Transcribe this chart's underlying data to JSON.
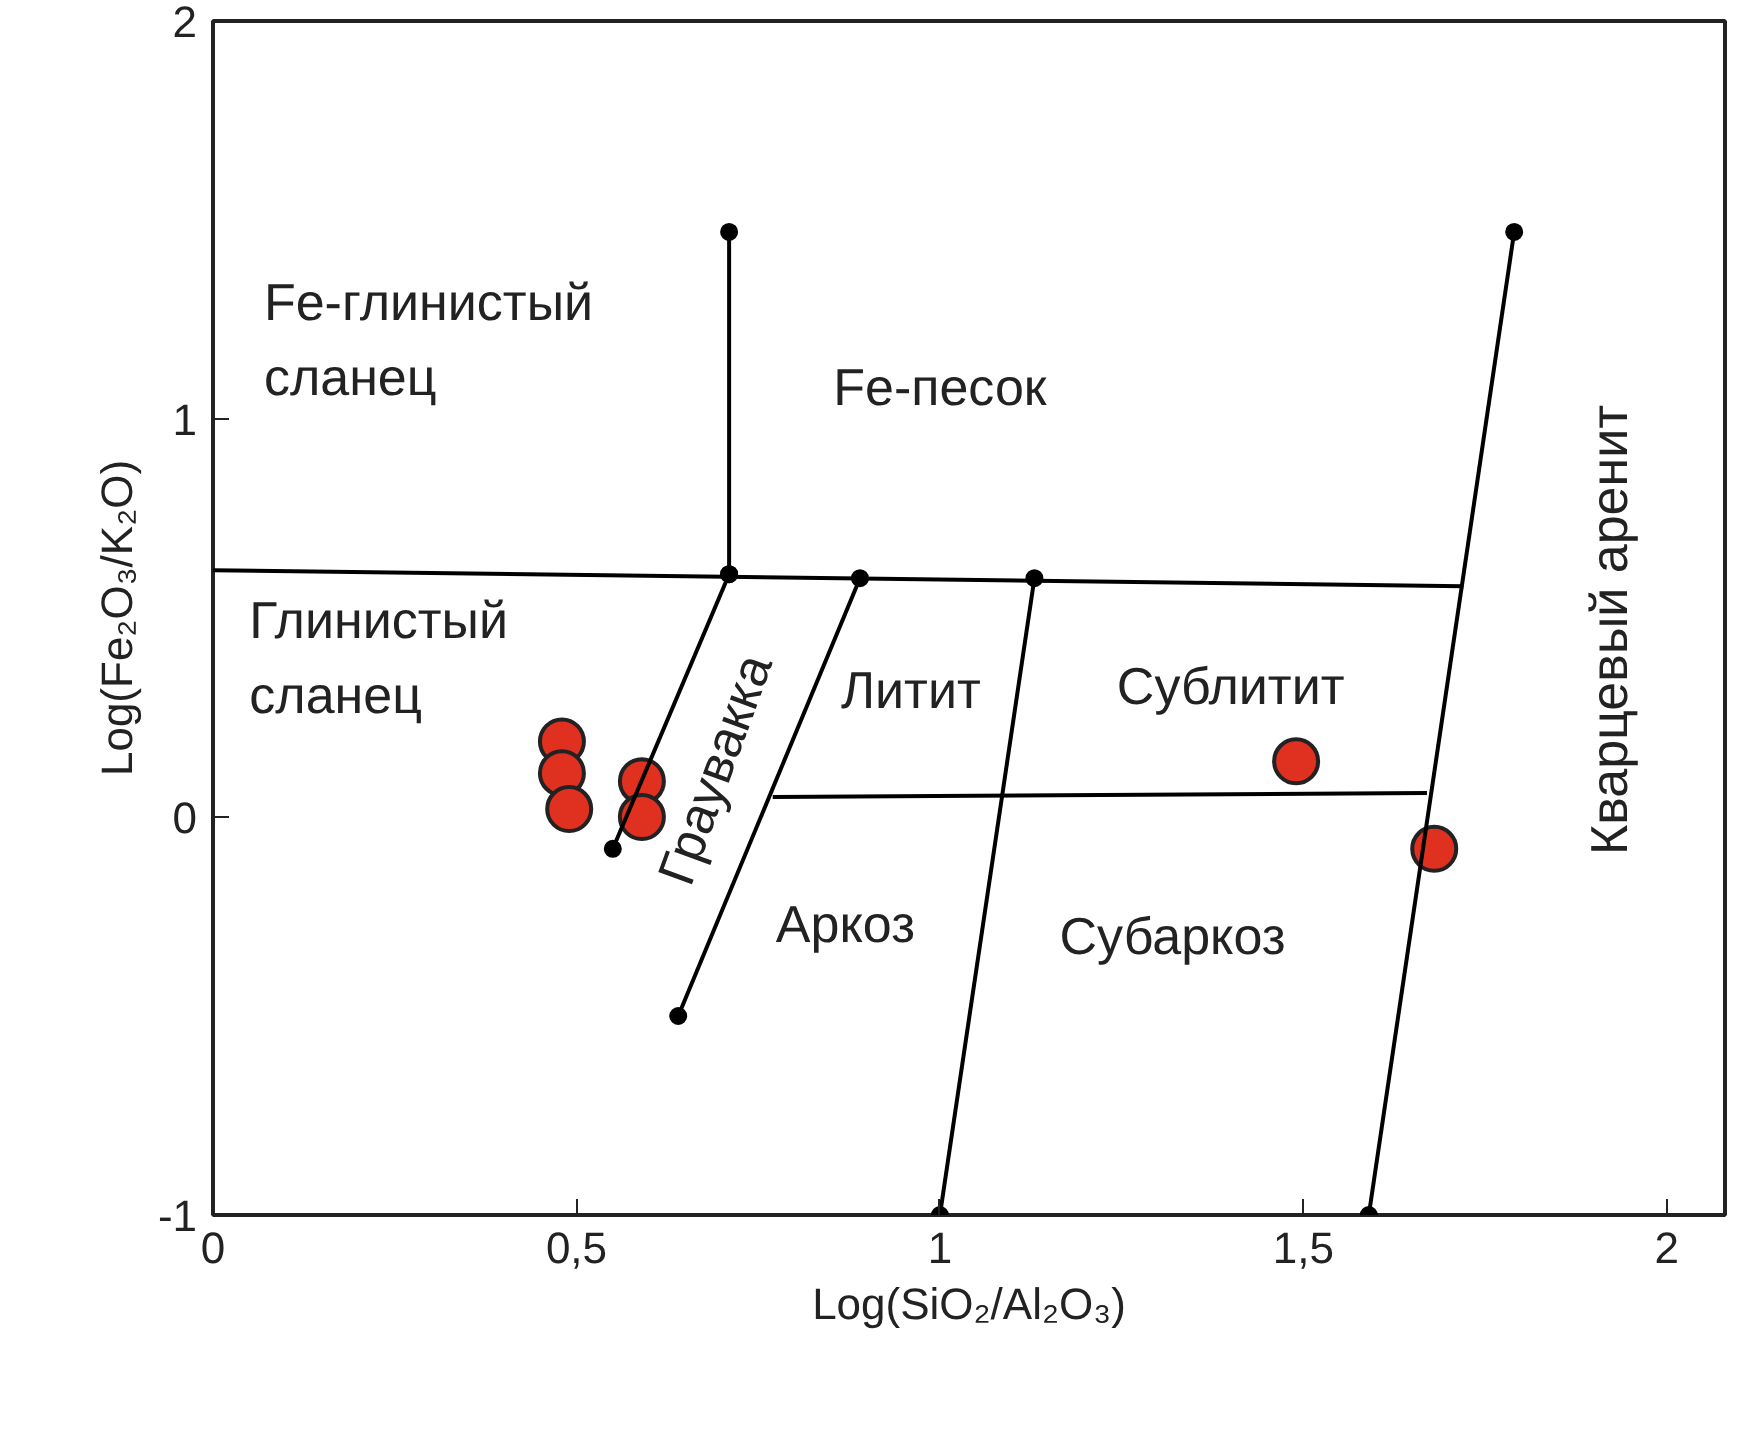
{
  "chart_data": {
    "type": "scatter",
    "xlabel": "Log(SiO₂/Al₂O₃)",
    "ylabel": "Log(Fe₂O₃/K₂O)",
    "xlim": [
      0,
      2.08
    ],
    "ylim": [
      -1,
      2
    ],
    "xticks": [
      0,
      {
        "value": 0.5,
        "label": "0,5"
      },
      1,
      {
        "value": 1.5,
        "label": "1,5"
      },
      2
    ],
    "yticks": [
      -1,
      0,
      1,
      2
    ],
    "grid": false,
    "marker": "circle",
    "series": [
      {
        "color": "#e03020",
        "x": [
          0.48,
          0.48,
          0.49,
          0.59,
          0.59,
          1.49,
          1.68
        ],
        "values": [
          0.19,
          0.11,
          0.02,
          0.09,
          0.0,
          0.14,
          -0.08
        ]
      },
      {
        "type": "line",
        "color": "#000000",
        "marker": "none",
        "x": [
          0,
          1.72
        ],
        "values": [
          0.62,
          0.58
        ]
      },
      {
        "type": "line",
        "color": "#000000",
        "x": [
          0.71,
          0.71
        ],
        "values": [
          1.47,
          0.61
        ]
      },
      {
        "type": "line",
        "color": "#000000",
        "x": [
          0.71,
          0.55
        ],
        "values": [
          0.61,
          -0.08
        ]
      },
      {
        "type": "line",
        "color": "#000000",
        "x": [
          0.89,
          0.64
        ],
        "values": [
          0.6,
          -0.5
        ]
      },
      {
        "type": "line",
        "color": "#000000",
        "marker": "none",
        "x": [
          0.77,
          1.67
        ],
        "values": [
          0.05,
          0.06
        ]
      },
      {
        "type": "line",
        "color": "#000000",
        "x": [
          1.13,
          1.0
        ],
        "values": [
          0.6,
          -1
        ]
      },
      {
        "type": "line",
        "color": "#000000",
        "x": [
          1.79,
          1.59
        ],
        "values": [
          1.47,
          -1
        ]
      }
    ],
    "annotations": [
      "Fe-глинистый\nсланец",
      "Fe-песок",
      "Глинистый\nсланец",
      "Литит",
      "Граувакка",
      "Сублитит",
      "Аркоз",
      "Субаркоз",
      "Кварцевый аренит"
    ]
  }
}
